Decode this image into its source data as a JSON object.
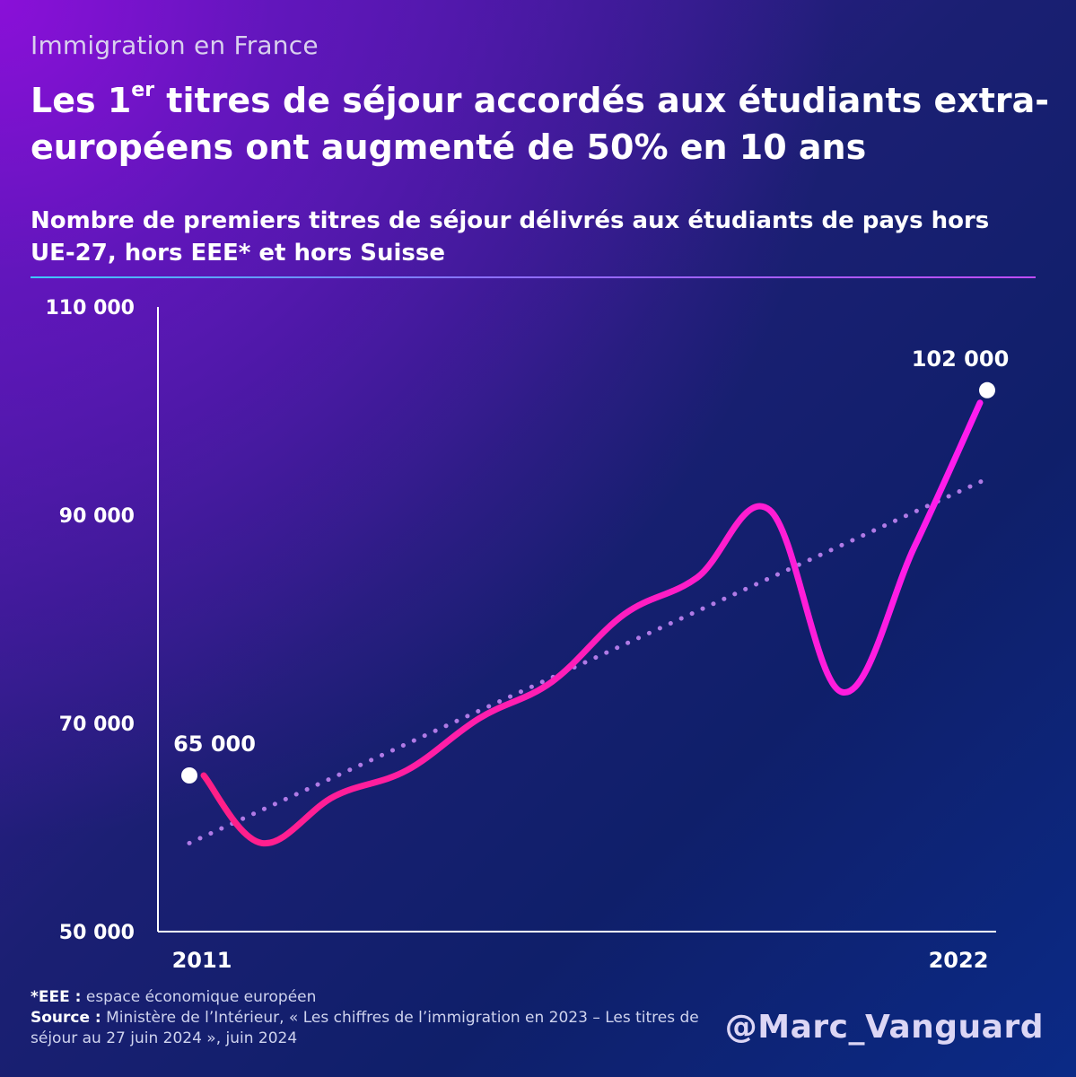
{
  "header": {
    "supertitle": "Immigration en France",
    "title_part1": "Les 1",
    "title_sup": "er",
    "title_part2": " titres de séjour accordés aux étudiants extra-européens ont augmenté de 50% en 10 ans",
    "subtitle": "Nombre de premiers titres de séjour délivrés aux étudiants de pays hors UE-27,  hors EEE* et hors Suisse"
  },
  "colors": {
    "line_start": "#ff1f86",
    "line_end": "#ff1cf0",
    "trend": "#b07ae6",
    "axis": "#ffffff",
    "separator": "#8a70ff"
  },
  "chart_data": {
    "type": "line",
    "title": "Nombre de premiers titres de séjour délivrés aux étudiants de pays hors UE-27,  hors EEE* et hors Suisse",
    "xlabel": "",
    "ylabel": "",
    "x": [
      2011,
      2012,
      2013,
      2014,
      2015,
      2016,
      2017,
      2018,
      2019,
      2020,
      2021,
      2022
    ],
    "x_tick_labels": [
      "2011",
      "2022"
    ],
    "ylim": [
      50000,
      110000
    ],
    "y_tick_values": [
      50000,
      70000,
      90000,
      110000
    ],
    "y_tick_labels": [
      "50 000",
      "70 000",
      "90 000",
      "110 000"
    ],
    "grid": false,
    "series": [
      {
        "values": [
          65000,
          58500,
          63000,
          65500,
          70500,
          74000,
          80500,
          84000,
          90500,
          73000,
          87000,
          102000
        ],
        "style": "solid-smooth-gradient",
        "color": "#ff1f86"
      },
      {
        "values": [
          58500,
          61500,
          64500,
          67500,
          70500,
          73800,
          77000,
          80200,
          83500,
          86800,
          90200,
          93500
        ],
        "style": "dotted-trend",
        "color": "#b07ae6"
      }
    ],
    "annotations": [
      {
        "x": 2011,
        "value": 65000,
        "label": "65 000"
      },
      {
        "x": 2022,
        "value": 102000,
        "label": "102 000"
      }
    ]
  },
  "footer": {
    "note_key": "*EEE :",
    "note_text": " espace économique européen",
    "source_key": "Source :",
    "source_text": " Ministère de l’Intérieur, « Les chiffres de l’immigration en 2023 – Les titres de séjour au 27 juin 2024 », juin 2024",
    "handle": "@Marc_Vanguard"
  }
}
